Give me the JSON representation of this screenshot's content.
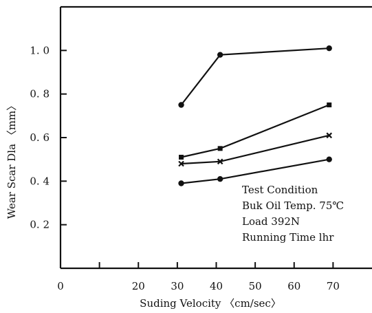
{
  "chart_data": {
    "type": "line",
    "title": "",
    "xlabel": "Suding Velocity 〈cm/sec〉",
    "ylabel": "Wear Scar Dla 〈mm〉",
    "xlim": [
      0,
      80
    ],
    "ylim": [
      0,
      1.2
    ],
    "x_ticks": [
      0,
      10,
      20,
      30,
      40,
      50,
      60,
      70
    ],
    "x_tick_labels": [
      "0",
      "",
      "20",
      "30",
      "40",
      "50",
      "60",
      "70"
    ],
    "y_ticks": [
      0.2,
      0.4,
      0.6,
      0.8,
      1.0
    ],
    "y_tick_labels": [
      "0. 2",
      "0. 4",
      "0. 6",
      "0. 8",
      "1. 0"
    ],
    "grid": false,
    "series": [
      {
        "marker": "circle",
        "x": [
          31,
          41,
          69
        ],
        "y": [
          0.75,
          0.98,
          1.01
        ]
      },
      {
        "marker": "square",
        "x": [
          31,
          41,
          69
        ],
        "y": [
          0.51,
          0.55,
          0.75
        ]
      },
      {
        "marker": "cross",
        "x": [
          31,
          41,
          69
        ],
        "y": [
          0.48,
          0.49,
          0.61
        ]
      },
      {
        "marker": "circle",
        "x": [
          31,
          41,
          69
        ],
        "y": [
          0.39,
          0.41,
          0.5
        ]
      }
    ],
    "annotation": {
      "lines": [
        "Test  Condition",
        "Buk Oil Temp. 75℃",
        "Load 392N",
        "Running Time lhr"
      ]
    },
    "colors": {
      "line": "#111111",
      "axis": "#111111"
    }
  }
}
